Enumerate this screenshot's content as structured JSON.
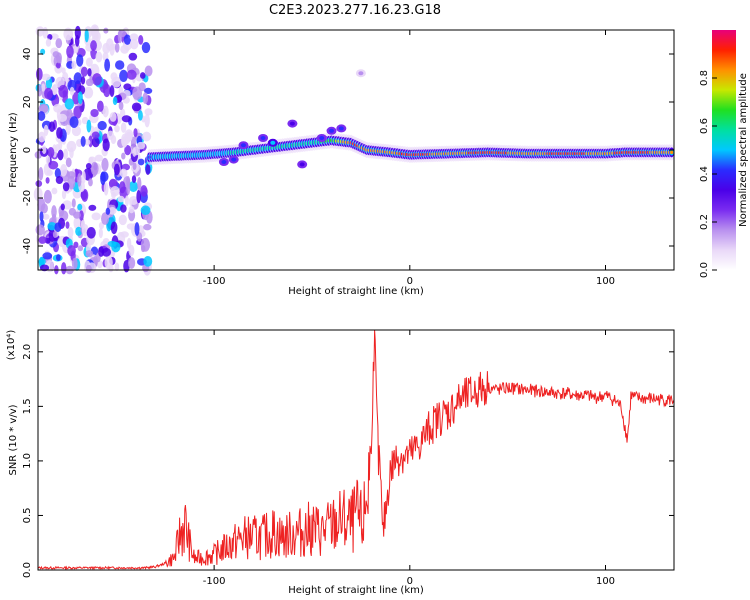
{
  "title": "C2E3.2023.277.16.23.G18",
  "colors": {
    "snr_line": "#ee2222",
    "axis": "#000000",
    "colormap": [
      "#ffffff",
      "#e9d8f8",
      "#b990ef",
      "#7a2cf0",
      "#4a00e8",
      "#2a2cff",
      "#00c8ff",
      "#00e0a0",
      "#20e020",
      "#c8e800",
      "#ff9000",
      "#ff2000",
      "#e8007a"
    ]
  },
  "chart_data": [
    {
      "type": "heatmap",
      "title": "C2E3.2023.277.16.23.G18",
      "xlabel": "Height of straight line (km)",
      "ylabel": "Frequency (Hz)",
      "xlim": [
        -190,
        135
      ],
      "ylim": [
        -50,
        50
      ],
      "x_ticks": [
        -100,
        0,
        100
      ],
      "y_ticks": [
        -40,
        -20,
        0,
        20,
        40
      ],
      "grid": false,
      "colorbar": {
        "label": "Normalized spectral amplitude",
        "range": [
          0.0,
          1.0
        ],
        "ticks": [
          0.0,
          0.2,
          0.4,
          0.6,
          0.8
        ]
      },
      "noise_region_x": [
        -190,
        -133
      ],
      "ridge": [
        {
          "x": -133,
          "freq": -3,
          "amp": 0.45
        },
        {
          "x": -120,
          "freq": -2.5,
          "amp": 0.5
        },
        {
          "x": -105,
          "freq": -2,
          "amp": 0.5
        },
        {
          "x": -90,
          "freq": -1,
          "amp": 0.55
        },
        {
          "x": -80,
          "freq": 0,
          "amp": 0.55
        },
        {
          "x": -70,
          "freq": 1,
          "amp": 0.6
        },
        {
          "x": -60,
          "freq": 2,
          "amp": 0.6
        },
        {
          "x": -50,
          "freq": 3,
          "amp": 0.6
        },
        {
          "x": -40,
          "freq": 4,
          "amp": 0.65
        },
        {
          "x": -30,
          "freq": 3,
          "amp": 0.9
        },
        {
          "x": -22,
          "freq": 0,
          "amp": 0.85
        },
        {
          "x": -10,
          "freq": -1,
          "amp": 0.85
        },
        {
          "x": 0,
          "freq": -2,
          "amp": 0.9
        },
        {
          "x": 20,
          "freq": -1.5,
          "amp": 0.85
        },
        {
          "x": 40,
          "freq": -1,
          "amp": 0.9
        },
        {
          "x": 60,
          "freq": -1.5,
          "amp": 0.85
        },
        {
          "x": 80,
          "freq": -1.5,
          "amp": 0.9
        },
        {
          "x": 100,
          "freq": -1.5,
          "amp": 0.85
        },
        {
          "x": 110,
          "freq": -1,
          "amp": 0.9
        },
        {
          "x": 135,
          "freq": -1,
          "amp": 0.85
        }
      ],
      "blobs": [
        {
          "x": -95,
          "freq": -5,
          "amp": 0.45
        },
        {
          "x": -90,
          "freq": -4,
          "amp": 0.4
        },
        {
          "x": -85,
          "freq": 2,
          "amp": 0.45
        },
        {
          "x": -75,
          "freq": 5,
          "amp": 0.4
        },
        {
          "x": -70,
          "freq": 3,
          "amp": 0.5
        },
        {
          "x": -60,
          "freq": 11,
          "amp": 0.35
        },
        {
          "x": -55,
          "freq": -6,
          "amp": 0.35
        },
        {
          "x": -45,
          "freq": 5,
          "amp": 0.4
        },
        {
          "x": -40,
          "freq": 8,
          "amp": 0.4
        },
        {
          "x": -35,
          "freq": 9,
          "amp": 0.45
        },
        {
          "x": -25,
          "freq": 32,
          "amp": 0.2
        }
      ]
    },
    {
      "type": "line",
      "xlabel": "Height of straight line (km)",
      "ylabel": "SNR (10 * v/v)",
      "multiplier_label": "(x10⁴)",
      "xlim": [
        -190,
        135
      ],
      "ylim": [
        0.0,
        2.2
      ],
      "x_ticks": [
        -100,
        0,
        100
      ],
      "y_ticks": [
        0.0,
        0.5,
        1.0,
        1.5,
        2.0
      ],
      "grid": false,
      "series": [
        {
          "x": [
            -190,
            -180,
            -170,
            -160,
            -150,
            -140,
            -135,
            -130,
            -125,
            -120,
            -118,
            -115,
            -112,
            -110,
            -105,
            -100,
            -95,
            -90,
            -85,
            -80,
            -75,
            -70,
            -65,
            -60,
            -55,
            -50,
            -45,
            -40,
            -35,
            -30,
            -27,
            -24,
            -22,
            -20,
            -19,
            -18,
            -17,
            -16,
            -15,
            -14,
            -12,
            -10,
            -8,
            -5,
            0,
            5,
            10,
            15,
            20,
            25,
            30,
            35,
            40,
            45,
            50,
            55,
            60,
            65,
            70,
            75,
            80,
            85,
            90,
            95,
            100,
            105,
            108,
            110,
            111,
            112,
            113,
            115,
            120,
            125,
            130,
            135
          ],
          "y": [
            0.02,
            0.02,
            0.02,
            0.02,
            0.02,
            0.02,
            0.02,
            0.03,
            0.06,
            0.12,
            0.3,
            0.42,
            0.2,
            0.1,
            0.12,
            0.14,
            0.2,
            0.25,
            0.3,
            0.3,
            0.3,
            0.35,
            0.3,
            0.33,
            0.35,
            0.38,
            0.35,
            0.4,
            0.45,
            0.42,
            0.5,
            0.4,
            0.7,
            1.0,
            1.6,
            2.2,
            1.5,
            1.0,
            0.9,
            0.3,
            0.6,
            0.9,
            1.0,
            1.05,
            1.05,
            1.15,
            1.3,
            1.4,
            1.45,
            1.55,
            1.6,
            1.65,
            1.68,
            1.65,
            1.67,
            1.66,
            1.65,
            1.64,
            1.63,
            1.62,
            1.62,
            1.6,
            1.6,
            1.58,
            1.6,
            1.55,
            1.5,
            1.3,
            1.2,
            1.35,
            1.6,
            1.58,
            1.57,
            1.57,
            1.56,
            1.56
          ]
        }
      ]
    }
  ]
}
